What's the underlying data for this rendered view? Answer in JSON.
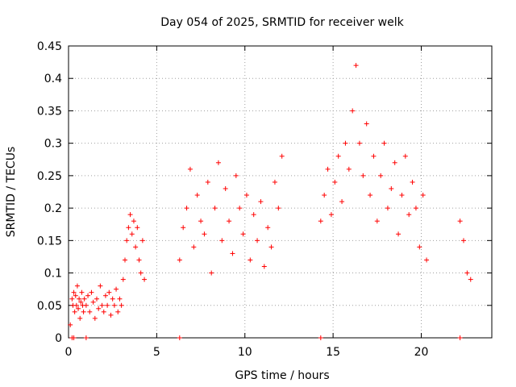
{
  "chart_data": {
    "type": "scatter",
    "title": "Day 054 of 2025, SRMTID for receiver welk",
    "xlabel": "GPS time / hours",
    "ylabel": "SRMTID / TECUs",
    "xlim": [
      0,
      24
    ],
    "ylim": [
      0,
      0.45
    ],
    "xticks": [
      "0",
      "5",
      "10",
      "15",
      "20"
    ],
    "yticks": [
      "0",
      "0.05",
      "0.1",
      "0.15",
      "0.2",
      "0.25",
      "0.3",
      "0.35",
      "0.4",
      "0.45"
    ],
    "grid": true,
    "marker": "plus",
    "color": "#ff0000",
    "x": [
      0.1,
      0.2,
      0.25,
      0.3,
      0.35,
      0.4,
      0.45,
      0.5,
      0.55,
      0.6,
      0.65,
      0.7,
      0.75,
      0.8,
      0.85,
      0.9,
      1.0,
      1.1,
      1.2,
      1.3,
      1.4,
      1.5,
      1.6,
      1.7,
      1.8,
      1.9,
      2.0,
      2.1,
      2.2,
      2.3,
      2.4,
      2.5,
      2.6,
      2.7,
      2.8,
      2.9,
      3.0,
      3.1,
      3.2,
      3.3,
      3.4,
      3.5,
      3.6,
      3.7,
      3.8,
      3.9,
      4.0,
      4.1,
      4.2,
      4.3,
      6.3,
      6.5,
      6.7,
      6.9,
      7.1,
      7.3,
      7.5,
      7.7,
      7.9,
      8.1,
      8.3,
      8.5,
      8.7,
      8.9,
      9.1,
      9.3,
      9.5,
      9.7,
      9.9,
      10.1,
      10.3,
      10.5,
      10.7,
      10.9,
      11.1,
      11.3,
      11.5,
      11.7,
      11.9,
      12.1,
      14.3,
      14.5,
      14.7,
      14.9,
      15.1,
      15.3,
      15.5,
      15.7,
      15.9,
      16.1,
      16.3,
      16.5,
      16.7,
      16.9,
      17.1,
      17.3,
      17.5,
      17.7,
      17.9,
      18.1,
      18.3,
      18.5,
      18.7,
      18.9,
      19.1,
      19.3,
      19.5,
      19.7,
      19.9,
      20.1,
      20.3,
      22.2,
      22.4,
      22.6,
      22.8,
      0.2,
      0.3,
      1.0,
      6.3,
      14.3,
      22.2
    ],
    "y": [
      0.02,
      0.06,
      0.05,
      0.07,
      0.04,
      0.065,
      0.05,
      0.08,
      0.045,
      0.06,
      0.03,
      0.055,
      0.07,
      0.05,
      0.04,
      0.06,
      0.05,
      0.065,
      0.04,
      0.07,
      0.055,
      0.03,
      0.06,
      0.045,
      0.08,
      0.05,
      0.04,
      0.065,
      0.05,
      0.07,
      0.035,
      0.06,
      0.05,
      0.075,
      0.04,
      0.06,
      0.05,
      0.09,
      0.12,
      0.15,
      0.17,
      0.19,
      0.16,
      0.18,
      0.14,
      0.17,
      0.12,
      0.1,
      0.15,
      0.09,
      0.12,
      0.17,
      0.2,
      0.26,
      0.14,
      0.22,
      0.18,
      0.16,
      0.24,
      0.1,
      0.2,
      0.27,
      0.15,
      0.23,
      0.18,
      0.13,
      0.25,
      0.2,
      0.16,
      0.22,
      0.12,
      0.19,
      0.15,
      0.21,
      0.11,
      0.17,
      0.14,
      0.24,
      0.2,
      0.28,
      0.18,
      0.22,
      0.26,
      0.19,
      0.24,
      0.28,
      0.21,
      0.3,
      0.26,
      0.35,
      0.42,
      0.3,
      0.25,
      0.33,
      0.22,
      0.28,
      0.18,
      0.25,
      0.3,
      0.2,
      0.23,
      0.27,
      0.16,
      0.22,
      0.28,
      0.19,
      0.24,
      0.2,
      0.14,
      0.22,
      0.12,
      0.18,
      0.15,
      0.1,
      0.09,
      0.0,
      0.0,
      0.0,
      0.0,
      0.0,
      0.0
    ]
  }
}
